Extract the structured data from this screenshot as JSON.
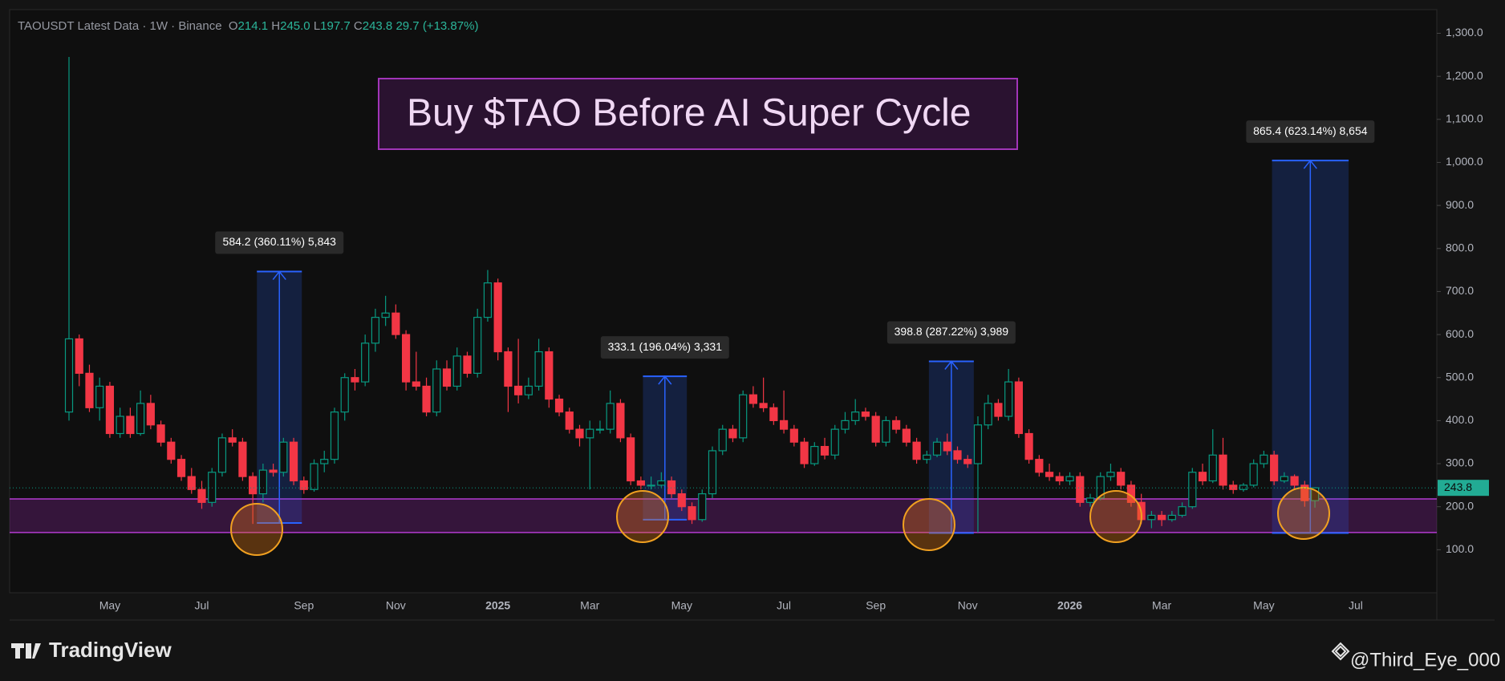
{
  "chart_data": {
    "type": "candlestick",
    "header": {
      "symbol": "TAOUSDT Latest Data · 1W · Binance",
      "fields": [
        {
          "key": "O",
          "value": "214.1"
        },
        {
          "key": "H",
          "value": "245.0"
        },
        {
          "key": "L",
          "value": "197.7"
        },
        {
          "key": "C",
          "value": "243.8"
        }
      ],
      "change": "29.7 (+13.87%)"
    },
    "title": "Buy $TAO Before AI Super Cycle",
    "up_color": "#089981",
    "down_color": "#f23645",
    "categories": [
      null,
      null,
      null,
      null,
      "May",
      null,
      null,
      null,
      null,
      null,
      null,
      null,
      null,
      "Jul",
      null,
      null,
      null,
      null,
      null,
      null,
      null,
      null,
      null,
      "Sep",
      null,
      null,
      null,
      null,
      null,
      null,
      null,
      null,
      "Nov",
      null,
      null,
      null,
      null,
      null,
      null,
      null,
      null,
      null,
      "2025",
      null,
      null,
      null,
      null,
      null,
      null,
      null,
      null,
      "Mar",
      null,
      null,
      null,
      null,
      null,
      null,
      null,
      null,
      "May",
      null,
      null,
      null,
      null,
      null,
      null,
      null,
      null,
      null,
      "Jul",
      null,
      null,
      null,
      null,
      null,
      null,
      null,
      null,
      "Sep",
      null,
      null,
      null,
      null,
      null,
      null,
      null,
      null,
      "Nov",
      null,
      null,
      null,
      null,
      null,
      null,
      null,
      null,
      null,
      "2026",
      null,
      null,
      null,
      null,
      null,
      null,
      null,
      null,
      "Mar",
      null,
      null,
      null,
      null,
      null,
      null,
      null,
      null,
      null,
      "May",
      null,
      null,
      null,
      null,
      null,
      null,
      null,
      null,
      "Jul"
    ],
    "open": [
      420,
      590,
      510,
      430,
      480,
      370,
      410,
      370,
      440,
      390,
      350,
      310,
      270,
      240,
      210,
      280,
      360,
      350,
      270,
      230,
      285,
      280,
      350,
      260,
      240,
      300,
      310,
      420,
      500,
      490,
      580,
      640,
      650,
      600,
      490,
      480,
      420,
      520,
      480,
      550,
      510,
      640,
      720,
      560,
      480,
      460,
      480,
      560,
      450,
      420,
      380,
      360,
      380,
      380,
      440,
      360,
      260,
      250,
      250,
      260,
      230,
      200,
      170,
      230,
      330,
      380,
      360,
      460,
      440,
      430,
      400,
      380,
      350,
      300,
      340,
      320,
      380,
      400,
      420,
      410,
      350,
      400,
      380,
      350,
      310,
      320,
      350,
      330,
      310,
      300,
      390,
      440,
      410,
      490,
      370,
      310,
      280,
      270,
      260,
      270,
      210,
      220,
      270,
      280,
      250,
      210,
      170,
      180,
      170,
      180,
      200,
      280,
      260,
      320,
      250,
      240,
      250,
      300,
      320,
      260,
      270,
      250,
      214.1,
      null,
      null,
      null,
      null
    ],
    "high": [
      1245,
      600,
      530,
      500,
      490,
      430,
      430,
      470,
      460,
      400,
      360,
      320,
      290,
      260,
      290,
      370,
      380,
      360,
      280,
      300,
      300,
      360,
      360,
      270,
      310,
      330,
      430,
      510,
      520,
      600,
      660,
      690,
      670,
      610,
      560,
      500,
      540,
      540,
      570,
      560,
      660,
      750,
      730,
      570,
      590,
      500,
      590,
      570,
      460,
      430,
      390,
      400,
      400,
      470,
      450,
      370,
      270,
      270,
      280,
      270,
      240,
      210,
      240,
      340,
      390,
      390,
      470,
      480,
      500,
      440,
      470,
      390,
      360,
      350,
      360,
      390,
      420,
      450,
      430,
      420,
      410,
      410,
      390,
      360,
      330,
      360,
      370,
      340,
      320,
      410,
      460,
      450,
      520,
      500,
      380,
      320,
      300,
      280,
      280,
      280,
      230,
      280,
      300,
      290,
      260,
      230,
      190,
      190,
      190,
      210,
      290,
      300,
      380,
      360,
      260,
      255,
      310,
      330,
      330,
      280,
      275,
      260,
      245,
      null,
      null,
      null,
      null
    ],
    "low": [
      400,
      480,
      420,
      400,
      360,
      360,
      360,
      365,
      380,
      340,
      300,
      260,
      230,
      195,
      200,
      270,
      340,
      260,
      160,
      210,
      270,
      270,
      250,
      230,
      235,
      280,
      300,
      400,
      470,
      480,
      560,
      620,
      590,
      470,
      470,
      410,
      410,
      470,
      470,
      500,
      500,
      630,
      540,
      420,
      440,
      450,
      470,
      430,
      410,
      370,
      340,
      240,
      370,
      370,
      350,
      250,
      240,
      240,
      245,
      220,
      190,
      160,
      165,
      220,
      320,
      350,
      350,
      430,
      420,
      390,
      370,
      340,
      290,
      295,
      310,
      310,
      370,
      390,
      400,
      340,
      340,
      370,
      340,
      300,
      300,
      315,
      320,
      300,
      290,
      140,
      380,
      400,
      400,
      360,
      300,
      270,
      260,
      250,
      250,
      200,
      200,
      215,
      260,
      240,
      200,
      160,
      150,
      155,
      165,
      175,
      195,
      250,
      255,
      240,
      230,
      235,
      245,
      290,
      250,
      255,
      240,
      200,
      197.7,
      null,
      null,
      null,
      null
    ],
    "close": [
      590,
      510,
      430,
      480,
      370,
      410,
      370,
      440,
      390,
      350,
      310,
      270,
      240,
      210,
      280,
      360,
      350,
      270,
      230,
      285,
      280,
      350,
      260,
      240,
      300,
      310,
      420,
      500,
      490,
      580,
      640,
      650,
      600,
      490,
      480,
      420,
      520,
      480,
      550,
      510,
      640,
      720,
      560,
      480,
      460,
      480,
      560,
      450,
      420,
      380,
      360,
      380,
      380,
      440,
      360,
      260,
      250,
      250,
      260,
      230,
      200,
      170,
      230,
      330,
      380,
      360,
      460,
      440,
      430,
      400,
      380,
      350,
      300,
      340,
      320,
      380,
      400,
      420,
      410,
      350,
      400,
      380,
      350,
      310,
      320,
      350,
      330,
      310,
      300,
      390,
      440,
      410,
      490,
      370,
      310,
      280,
      270,
      260,
      270,
      210,
      220,
      270,
      280,
      250,
      210,
      170,
      180,
      170,
      180,
      200,
      280,
      260,
      320,
      250,
      240,
      250,
      300,
      320,
      260,
      270,
      250,
      214.1,
      243.8,
      null,
      null,
      null,
      null
    ],
    "ylim": [
      0,
      1355
    ],
    "yticks": [
      {
        "value": 100,
        "label": "100.0"
      },
      {
        "value": 200,
        "label": "200.0"
      },
      {
        "value": 300,
        "label": "300.0"
      },
      {
        "value": 400,
        "label": "400.0"
      },
      {
        "value": 500,
        "label": "500.0"
      },
      {
        "value": 600,
        "label": "600.0"
      },
      {
        "value": 700,
        "label": "700.0"
      },
      {
        "value": 800,
        "label": "800.0"
      },
      {
        "value": 900,
        "label": "900.0"
      },
      {
        "value": 1000,
        "label": "1,000.0"
      },
      {
        "value": 1100,
        "label": "1,100.0"
      },
      {
        "value": 1200,
        "label": "1,200.0"
      },
      {
        "value": 1300,
        "label": "1,300.0"
      }
    ],
    "support_zone": [
      140,
      218
    ],
    "measures": [
      {
        "from": 162.2,
        "to": 746.4,
        "label": "584.2 (360.11%) 5,843"
      },
      {
        "from": 169.9,
        "to": 503.0,
        "label": "333.1 (196.04%) 3,331"
      },
      {
        "from": 138.9,
        "to": 537.7,
        "label": "398.8 (287.22%) 3,989"
      },
      {
        "from": 138.9,
        "to": 1004.3,
        "label": "865.4 (623.14%) 8,654"
      }
    ],
    "brand": "TradingView",
    "watermark": "@Third_Eye_000"
  }
}
